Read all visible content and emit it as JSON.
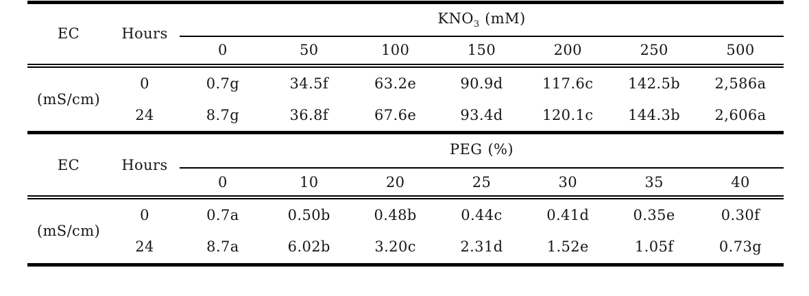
{
  "tables": [
    {
      "corner_label": "EC",
      "hours_label": "Hours",
      "span_header": {
        "base": "KNO",
        "sub": "3",
        "unit": "(mM)"
      },
      "columns": [
        "0",
        "50",
        "100",
        "150",
        "200",
        "250",
        "500"
      ],
      "row_label": "(mS/cm)",
      "rows": [
        {
          "hours": "0",
          "values": [
            "0.7g",
            "34.5f",
            "63.2e",
            "90.9d",
            "117.6c",
            "142.5b",
            "2,586a"
          ]
        },
        {
          "hours": "24",
          "values": [
            "8.7g",
            "36.8f",
            "67.6e",
            "93.4d",
            "120.1c",
            "144.3b",
            "2,606a"
          ]
        }
      ]
    },
    {
      "corner_label": "EC",
      "hours_label": "Hours",
      "span_header": {
        "base": "PEG",
        "sub": "",
        "unit": "(%)"
      },
      "columns": [
        "0",
        "10",
        "20",
        "25",
        "30",
        "35",
        "40"
      ],
      "row_label": "(mS/cm)",
      "rows": [
        {
          "hours": "0",
          "values": [
            "0.7a",
            "0.50b",
            "0.48b",
            "0.44c",
            "0.41d",
            "0.35e",
            "0.30f"
          ]
        },
        {
          "hours": "24",
          "values": [
            "8.7a",
            "6.02b",
            "3.20c",
            "2.31d",
            "1.52e",
            "1.05f",
            "0.73g"
          ]
        }
      ]
    }
  ],
  "colors": {
    "rule": "#000000",
    "text": "#161616",
    "background": "#ffffff"
  }
}
